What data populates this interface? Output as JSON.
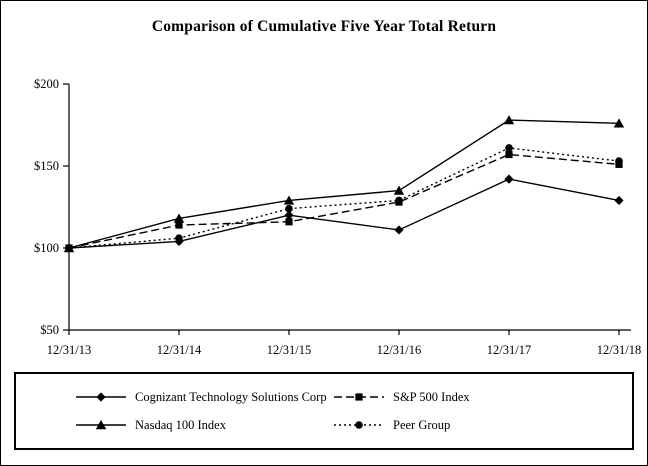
{
  "title": "Comparison of Cumulative Five Year Total Return",
  "chart_data": {
    "type": "line",
    "x": [
      "12/31/13",
      "12/31/14",
      "12/31/15",
      "12/31/16",
      "12/31/17",
      "12/31/18"
    ],
    "series": [
      {
        "name": "Cognizant Technology Solutions Corp",
        "values": [
          100,
          104,
          120,
          111,
          142,
          129
        ],
        "marker": "diamond",
        "line_style": "solid"
      },
      {
        "name": "S&P 500 Index",
        "values": [
          100,
          114,
          116,
          128,
          157,
          151
        ],
        "marker": "square",
        "line_style": "dashed"
      },
      {
        "name": "Nasdaq 100 Index",
        "values": [
          100,
          118,
          129,
          135,
          178,
          176
        ],
        "marker": "triangle",
        "line_style": "solid"
      },
      {
        "name": "Peer Group",
        "values": [
          100,
          106,
          124,
          129,
          161,
          153
        ],
        "marker": "circle",
        "line_style": "dotted"
      }
    ],
    "ylim": [
      50,
      200
    ],
    "yticks": [
      50,
      100,
      150,
      200
    ],
    "ytick_labels": [
      "$50",
      "$100",
      "$150",
      "$200"
    ],
    "xlabel": "",
    "ylabel": "",
    "grid": "off",
    "line_color": "#000000",
    "legend_position": "bottom-box"
  }
}
